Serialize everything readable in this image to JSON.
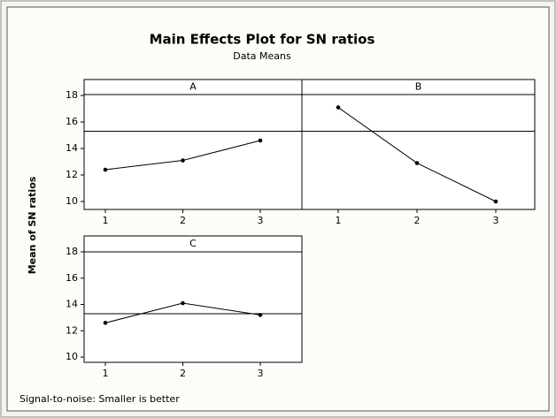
{
  "chart_data": {
    "type": "line",
    "title": "Main Effects Plot for SN ratios",
    "subtitle": "Data Means",
    "ylabel": "Mean of SN ratios",
    "footnote": "Signal-to-noise: Smaller is better",
    "color": "#000000",
    "panels": [
      {
        "name": "A",
        "categories": [
          "1",
          "2",
          "3"
        ],
        "values": [
          12.4,
          13.1,
          14.6
        ],
        "reference": 15.3,
        "ylim": [
          9.4,
          18.07
        ],
        "yticks": [
          10,
          12,
          14,
          16,
          18
        ]
      },
      {
        "name": "B",
        "categories": [
          "1",
          "2",
          "3"
        ],
        "values": [
          17.1,
          12.9,
          10.0
        ],
        "reference": 15.3,
        "ylim": [
          9.4,
          18.07
        ]
      },
      {
        "name": "C",
        "categories": [
          "1",
          "2",
          "3"
        ],
        "values": [
          12.6,
          14.1,
          13.2
        ],
        "reference": 13.3,
        "ylim": [
          9.6,
          18
        ],
        "yticks": [
          10,
          12,
          14,
          16,
          18
        ]
      }
    ]
  }
}
